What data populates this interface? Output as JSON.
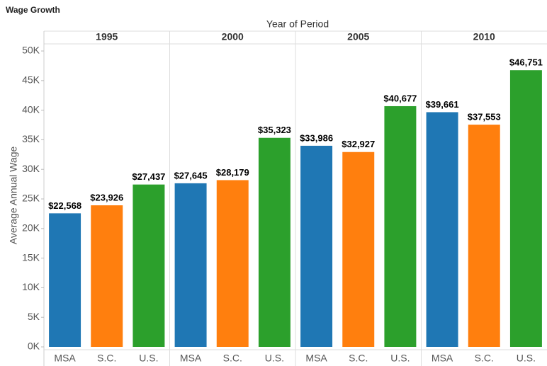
{
  "chart_data": {
    "type": "bar",
    "title": "Wage Growth",
    "column_header": "Year of Period",
    "y_label": "Average Annual Wage",
    "colors": [
      "#1f77b4",
      "#ff7f0e",
      "#2ca02c"
    ],
    "ylim": [
      0,
      51200
    ],
    "yticks": [
      {
        "value": 0,
        "label": "0K"
      },
      {
        "value": 5000,
        "label": "5K"
      },
      {
        "value": 10000,
        "label": "10K"
      },
      {
        "value": 15000,
        "label": "15K"
      },
      {
        "value": 20000,
        "label": "20K"
      },
      {
        "value": 25000,
        "label": "25K"
      },
      {
        "value": 30000,
        "label": "30K"
      },
      {
        "value": 35000,
        "label": "35K"
      },
      {
        "value": 40000,
        "label": "40K"
      },
      {
        "value": 45000,
        "label": "45K"
      },
      {
        "value": 50000,
        "label": "50K"
      }
    ],
    "panels": [
      {
        "name": "1995",
        "categories": [
          "MSA",
          "S.C.",
          "U.S."
        ],
        "values": [
          22568,
          23926,
          27437
        ],
        "value_labels": [
          "$22,568",
          "$23,926",
          "$27,437"
        ]
      },
      {
        "name": "2000",
        "categories": [
          "MSA",
          "S.C.",
          "U.S."
        ],
        "values": [
          27645,
          28179,
          35323
        ],
        "value_labels": [
          "$27,645",
          "$28,179",
          "$35,323"
        ]
      },
      {
        "name": "2005",
        "categories": [
          "MSA",
          "S.C.",
          "U.S."
        ],
        "values": [
          33986,
          32927,
          40677
        ],
        "value_labels": [
          "$33,986",
          "$32,927",
          "$40,677"
        ]
      },
      {
        "name": "2010",
        "categories": [
          "MSA",
          "S.C.",
          "U.S."
        ],
        "values": [
          39661,
          37553,
          46751
        ],
        "value_labels": [
          "$39,661",
          "$37,553",
          "$46,751"
        ]
      }
    ]
  }
}
